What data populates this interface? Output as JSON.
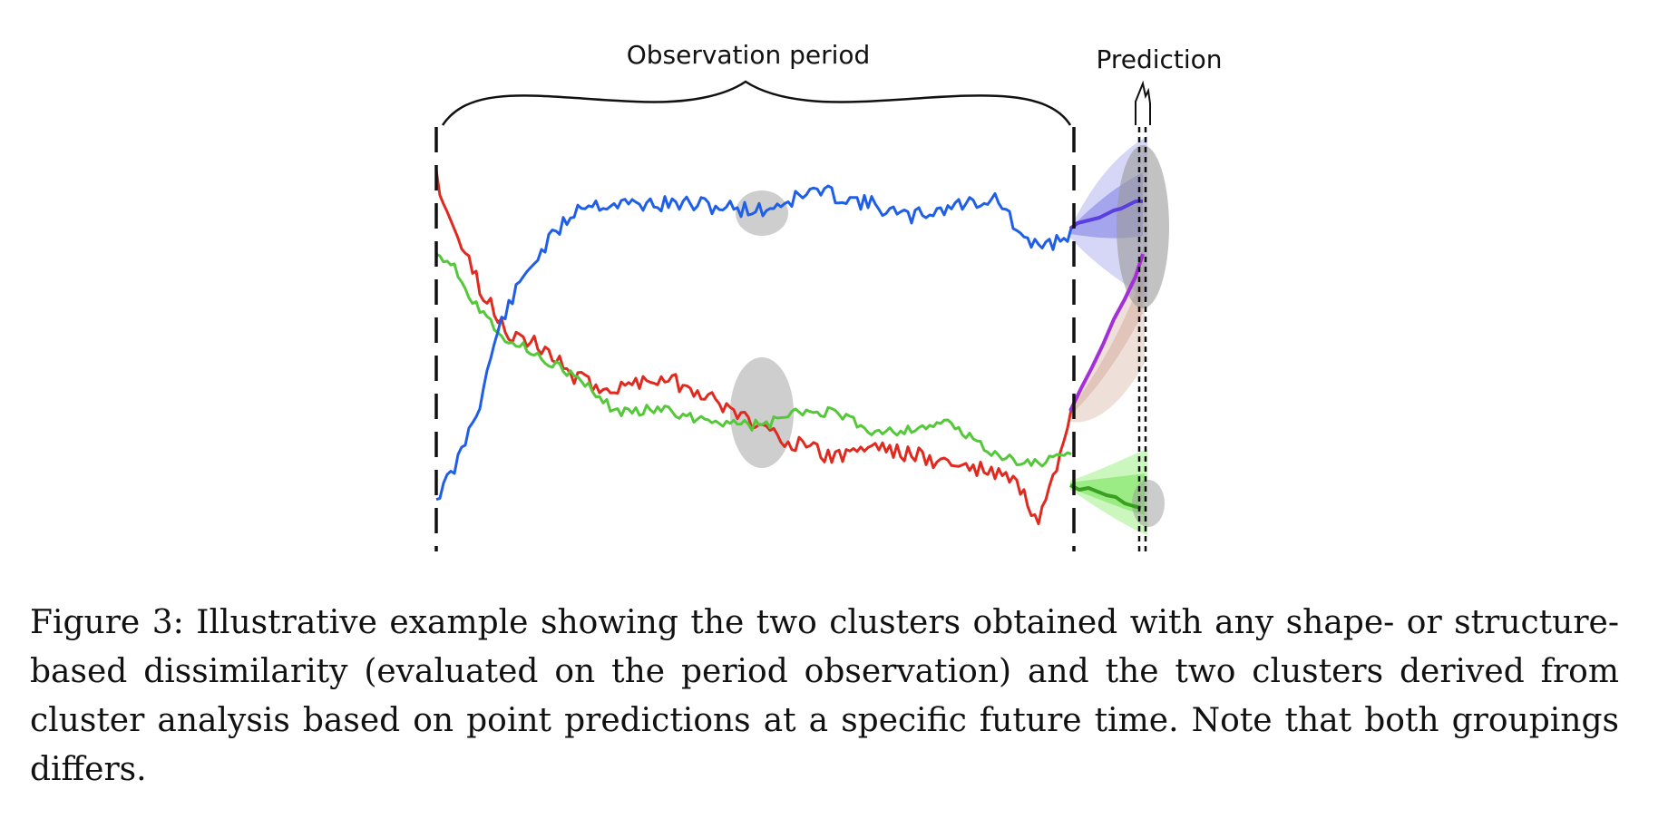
{
  "figure": {
    "labels": {
      "observation": "Observation period",
      "prediction": "Prediction"
    },
    "colors": {
      "blue": "#1f5fe8",
      "red": "#e02a20",
      "green": "#55c83a",
      "purple": "#9a2fe0",
      "band_blue": "#8a8ae8",
      "band_red": "#c99582",
      "band_green": "#7ee85a",
      "ellipse": "#bdbdbd"
    }
  },
  "caption": {
    "text": "Figure 3: Illustrative example showing the two clusters obtained with any shape- or structure-based dissimilarity (evaluated on the period observation) and the two clusters derived from cluster analysis based on point predictions at a specific future time. Note that both groupings differs."
  }
}
